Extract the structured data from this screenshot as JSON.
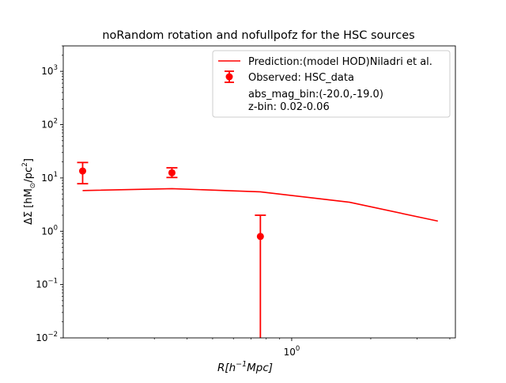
{
  "chart_data": {
    "type": "line",
    "title": "noRandom rotation and nofullpofz for the HSC sources",
    "xlabel": {
      "base": "R[h",
      "sup": "−1",
      "tail": "Mpc]"
    },
    "ylabel": {
      "pre": "ΔΣ [hM",
      "sub": "⊙",
      "mid": "/pc",
      "sup": "2",
      "post": "]"
    },
    "x_scale": "log",
    "y_scale": "log",
    "xlim": [
      0.135,
      4.2
    ],
    "ylim": [
      0.01,
      3000
    ],
    "x_tick_labels": [
      {
        "value": 1,
        "label": "10",
        "exp": "0"
      }
    ],
    "y_tick_labels": [
      {
        "value": 0.01,
        "label": "10",
        "exp": "−2"
      },
      {
        "value": 0.1,
        "label": "10",
        "exp": "−1"
      },
      {
        "value": 1,
        "label": "10",
        "exp": "0"
      },
      {
        "value": 10,
        "label": "10",
        "exp": "1"
      },
      {
        "value": 100,
        "label": "10",
        "exp": "2"
      },
      {
        "value": 1000,
        "label": "10",
        "exp": "3"
      }
    ],
    "series": [
      {
        "name": "Prediction:(model HOD)Niladri et al.",
        "kind": "line",
        "color": "#ff0000",
        "x": [
          0.16,
          0.35,
          0.76,
          1.66,
          3.6
        ],
        "y": [
          5.8,
          6.3,
          5.5,
          3.5,
          1.55
        ]
      },
      {
        "name": "Observed: HSC_data",
        "kind": "errorbar",
        "color": "#ff0000",
        "x": [
          0.16,
          0.35,
          0.76
        ],
        "y": [
          13.5,
          12.5,
          0.8
        ],
        "yerr_low": [
          7.8,
          10.2,
          0.0001
        ],
        "yerr_high": [
          19.5,
          15.5,
          2.0
        ]
      }
    ],
    "legend": {
      "position": "top-right",
      "entries": [
        "Prediction:(model HOD)Niladri et al.",
        "Observed: HSC_data",
        "abs_mag_bin:(-20.0,-19.0)",
        "z-bin: 0.02-0.06"
      ]
    },
    "grid": false
  }
}
